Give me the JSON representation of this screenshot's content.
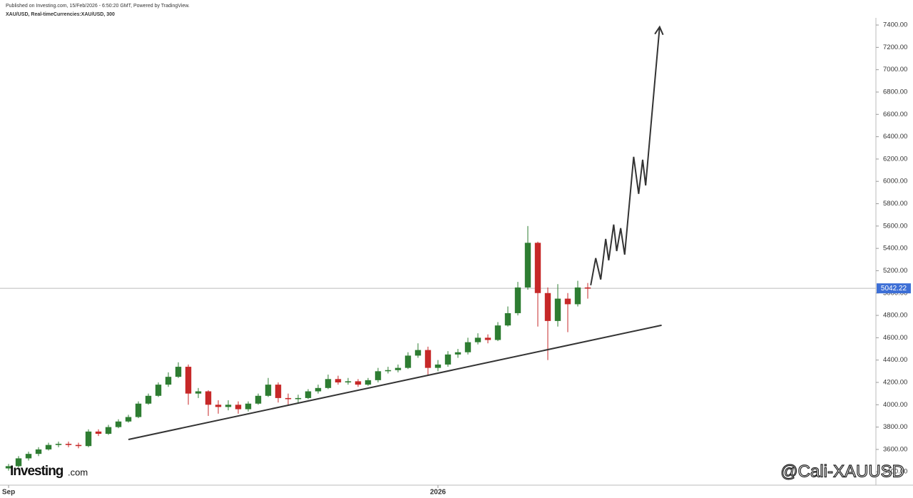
{
  "header": {
    "published": "Published on Investing.com, 15/Feb/2026 - 6:50:20 GMT, Powered by TradingView.",
    "symbol": "XAU/USD, Real-timeCurrencies:XAU/USD, 300"
  },
  "watermarks": {
    "brand": "Investing",
    "brand_suffix": ".com",
    "author": "@Cali-XAUUSD"
  },
  "chart_data": {
    "type": "candlestick",
    "up_color": "#2e7d32",
    "down_color": "#c62828",
    "xlim": [
      -0.86,
      86.86
    ],
    "xticks": [
      {
        "value": 0,
        "label": "Sep"
      },
      {
        "value": 43,
        "label": "2026"
      }
    ],
    "ylim": [
      3280,
      7624
    ],
    "yticks": [
      {
        "value": 3400,
        "label": "3400.00"
      },
      {
        "value": 3600,
        "label": "3600.00"
      },
      {
        "value": 3800,
        "label": "3800.00"
      },
      {
        "value": 4000,
        "label": "4000.00"
      },
      {
        "value": 4200,
        "label": "4200.00"
      },
      {
        "value": 4400,
        "label": "4400.00"
      },
      {
        "value": 4600,
        "label": "4600.00"
      },
      {
        "value": 4800,
        "label": "4800.00"
      },
      {
        "value": 5000,
        "label": "5000.00"
      },
      {
        "value": 5200,
        "label": "5200.00"
      },
      {
        "value": 5400,
        "label": "5400.00"
      },
      {
        "value": 5600,
        "label": "5600.00"
      },
      {
        "value": 5800,
        "label": "5800.00"
      },
      {
        "value": 6000,
        "label": "6000.00"
      },
      {
        "value": 6200,
        "label": "6200.00"
      },
      {
        "value": 6400,
        "label": "6400.00"
      },
      {
        "value": 6600,
        "label": "6600.00"
      },
      {
        "value": 6800,
        "label": "6800.00"
      },
      {
        "value": 7000,
        "label": "7000.00"
      },
      {
        "value": 7200,
        "label": "7200.00"
      },
      {
        "value": 7400,
        "label": "7400.00"
      }
    ],
    "open": [
      3430,
      3450,
      3520,
      3560,
      3600,
      3640,
      3650,
      3640,
      3630,
      3760,
      3740,
      3800,
      3850,
      3890,
      4010,
      4080,
      4180,
      4250,
      4340,
      4100,
      4120,
      4000,
      3980,
      4000,
      3960,
      4010,
      4080,
      4180,
      4060,
      4050,
      4060,
      4120,
      4150,
      4230,
      4200,
      4210,
      4180,
      4220,
      4300,
      4310,
      4330,
      4440,
      4490,
      4330,
      4360,
      4450,
      4470,
      4560,
      4600,
      4580,
      4710,
      4820,
      5050,
      5450,
      5000,
      4750,
      4950,
      4900,
      5050
    ],
    "high": [
      3470,
      3540,
      3580,
      3620,
      3660,
      3670,
      3670,
      3660,
      3780,
      3780,
      3820,
      3870,
      3910,
      4030,
      4100,
      4200,
      4290,
      4380,
      4360,
      4150,
      4130,
      4040,
      4040,
      4030,
      4030,
      4100,
      4240,
      4200,
      4100,
      4090,
      4140,
      4180,
      4270,
      4260,
      4240,
      4230,
      4240,
      4330,
      4340,
      4360,
      4470,
      4550,
      4520,
      4400,
      4480,
      4500,
      4600,
      4640,
      4630,
      4740,
      4880,
      5100,
      5600,
      5460,
      5050,
      5080,
      5000,
      5110,
      5090
    ],
    "low": [
      3410,
      3440,
      3500,
      3540,
      3590,
      3620,
      3620,
      3610,
      3620,
      3720,
      3730,
      3790,
      3840,
      3880,
      4000,
      4070,
      4160,
      4240,
      4000,
      4060,
      3900,
      3920,
      3950,
      3920,
      3940,
      4000,
      4070,
      4020,
      4000,
      4020,
      4050,
      4100,
      4140,
      4180,
      4180,
      4160,
      4170,
      4200,
      4280,
      4290,
      4320,
      4420,
      4260,
      4300,
      4340,
      4420,
      4450,
      4540,
      4550,
      4570,
      4700,
      4800,
      5030,
      4700,
      4400,
      4700,
      4650,
      4880,
      4950
    ],
    "close": [
      3450,
      3520,
      3560,
      3600,
      3640,
      3650,
      3640,
      3630,
      3760,
      3740,
      3800,
      3850,
      3890,
      4010,
      4080,
      4180,
      4250,
      4340,
      4100,
      4120,
      4000,
      3980,
      4000,
      3960,
      4010,
      4080,
      4180,
      4060,
      4050,
      4060,
      4120,
      4150,
      4230,
      4200,
      4210,
      4180,
      4220,
      4300,
      4310,
      4330,
      4440,
      4490,
      4330,
      4360,
      4450,
      4470,
      4560,
      4600,
      4580,
      4710,
      4820,
      5050,
      5450,
      5000,
      4750,
      4950,
      4900,
      5050,
      5040
    ],
    "last_price": {
      "value": 5042.22,
      "label": "5042.22",
      "color": "#3d6fd6"
    },
    "trendline": {
      "x": [
        12,
        65.4
      ],
      "y": [
        3689,
        4712
      ]
    },
    "projection": {
      "x": [
        58.3,
        58.8,
        59.3,
        59.8,
        60.1,
        60.6,
        60.9,
        61.3,
        61.7,
        62.6,
        63.1,
        63.5,
        63.8,
        65.2
      ],
      "y": [
        5070,
        5313,
        5121,
        5485,
        5293,
        5613,
        5376,
        5581,
        5344,
        6220,
        5888,
        6194,
        5964,
        7383
      ]
    }
  }
}
